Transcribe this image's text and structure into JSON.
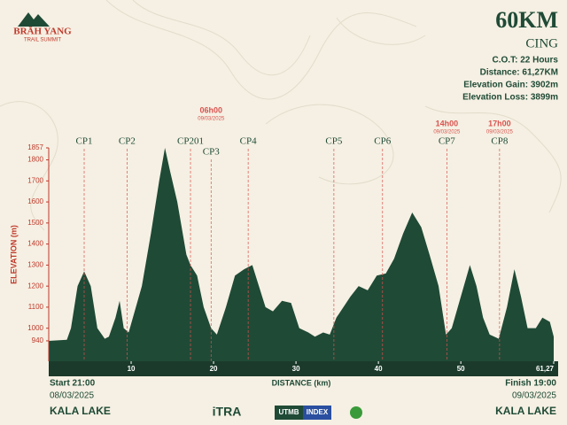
{
  "logo": {
    "name": "BRĀH YANG",
    "tagline": "TRAIL SUMMIT"
  },
  "header": {
    "distance": "60KM",
    "code": "CING",
    "info": [
      "C.O.T: 22 Hours",
      "Distance: 61,27KM",
      "Elevation Gain: 3902m",
      "Elevation Loss: 3899m"
    ]
  },
  "chart_data": {
    "type": "area",
    "color": "#1f4a36",
    "y_label": "ELEVATION (m)",
    "x_label": "DISTANCE (km)",
    "x": [
      0,
      2.2,
      2.7,
      3.5,
      4.3,
      5.1,
      5.9,
      6.8,
      7.3,
      8.1,
      8.6,
      9.1,
      9.7,
      11.3,
      12.4,
      13.4,
      14.1,
      14.7,
      15.6,
      16.7,
      17.2,
      18.0,
      18.8,
      19.7,
      20.4,
      21.5,
      22.6,
      23.7,
      24.7,
      25.5,
      26.3,
      27.2,
      28.3,
      29.4,
      30.4,
      31.5,
      32.3,
      33.3,
      34.1,
      34.9,
      36.6,
      37.6,
      38.7,
      39.8,
      40.9,
      41.9,
      43.0,
      44.1,
      45.2,
      46.2,
      47.3,
      48.2,
      48.9,
      50.0,
      51.1,
      51.9,
      52.7,
      53.5,
      54.6,
      55.6,
      56.5,
      57.3,
      58.1,
      59.1,
      59.9,
      60.8,
      61.27
    ],
    "values": [
      940,
      945,
      1000,
      1200,
      1270,
      1200,
      1000,
      950,
      960,
      1050,
      1130,
      1000,
      980,
      1200,
      1450,
      1700,
      1857,
      1750,
      1600,
      1350,
      1300,
      1250,
      1100,
      1000,
      970,
      1100,
      1250,
      1280,
      1300,
      1200,
      1100,
      1080,
      1130,
      1120,
      1000,
      980,
      960,
      980,
      970,
      1050,
      1150,
      1200,
      1180,
      1250,
      1260,
      1330,
      1450,
      1550,
      1480,
      1350,
      1200,
      970,
      1000,
      1150,
      1300,
      1200,
      1050,
      970,
      950,
      1100,
      1280,
      1150,
      1000,
      1000,
      1050,
      1030,
      960
    ],
    "xlim": [
      0,
      61.27
    ],
    "xticks": [
      10,
      20,
      30,
      40,
      50,
      {
        "value": 61.27,
        "label": "61,27"
      }
    ],
    "ylim": [
      843,
      1857
    ],
    "yticks": [
      940,
      1000,
      1100,
      1200,
      1300,
      1400,
      1500,
      1600,
      1700,
      1800,
      1857
    ],
    "checkpoints": [
      {
        "name": "CP1",
        "x": 4.3
      },
      {
        "name": "CP2",
        "x": 9.5
      },
      {
        "name": "CP201",
        "x": 17.2
      },
      {
        "name": "CP3",
        "x": 19.7,
        "time": "06h00",
        "date": "09/03/2025"
      },
      {
        "name": "CP4",
        "x": 24.2
      },
      {
        "name": "CP5",
        "x": 34.6
      },
      {
        "name": "CP6",
        "x": 40.5
      },
      {
        "name": "CP7",
        "x": 48.3,
        "time": "14h00",
        "date": "09/03/2025"
      },
      {
        "name": "CP8",
        "x": 54.7,
        "time": "17h00",
        "date": "09/03/2025"
      }
    ]
  },
  "footer": {
    "start": {
      "time": "Start 21:00",
      "date": "08/03/2025",
      "place": "KALA LAKE"
    },
    "finish": {
      "time": "Finish 19:00",
      "date": "09/03/2025",
      "place": "KALA LAKE"
    },
    "sponsors": [
      "iTRA",
      "UTMB",
      "INDEX"
    ]
  }
}
